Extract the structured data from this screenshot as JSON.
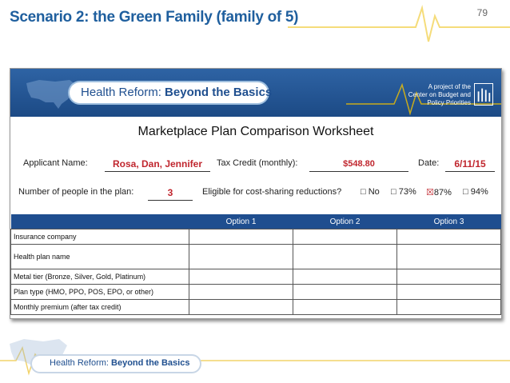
{
  "slide": {
    "title": "Scenario 2: the Green Family (family of 5)",
    "page_number": "79"
  },
  "banner": {
    "brand_light": "Health Reform: ",
    "brand_bold": "Beyond the Basics",
    "cbpp_line1": "A project of the",
    "cbpp_line2": "Center on Budget and",
    "cbpp_line3": "Policy Priorities"
  },
  "worksheet": {
    "title": "Marketplace Plan Comparison Worksheet",
    "applicant_label": "Applicant Name:",
    "applicant_value": "Rosa, Dan, Jennifer",
    "tax_credit_label": "Tax Credit (monthly):",
    "tax_credit_value": "$548.80",
    "date_label": "Date:",
    "date_value": "6/11/15",
    "people_label": "Number of people in the plan:",
    "people_value": "3",
    "eligible_label": "Eligible for cost-sharing reductions?",
    "options": [
      {
        "label": "No",
        "checked": false
      },
      {
        "label": "73%",
        "checked": false
      },
      {
        "label": "87%",
        "checked": true
      },
      {
        "label": "94%",
        "checked": false
      }
    ]
  },
  "table": {
    "headers": [
      "",
      "Option 1",
      "Option 2",
      "Option 3"
    ],
    "rows": [
      {
        "label": "Insurance company",
        "tall": false
      },
      {
        "label": "Health plan name",
        "tall": true
      },
      {
        "label": "Metal tier (Bronze, Silver, Gold, Platinum)",
        "tall": false
      },
      {
        "label": "Plan type (HMO, PPO, POS, EPO, or other)",
        "tall": false
      },
      {
        "label": "Monthly premium  (after tax credit)",
        "tall": false
      }
    ]
  },
  "footer": {
    "brand_light": "Health Reform: ",
    "brand_bold": "Beyond the Basics"
  },
  "colors": {
    "title_blue": "#1f5f9e",
    "banner_blue": "#1f4e8f",
    "value_red": "#c0262e",
    "pulse_yellow": "#f2c200"
  }
}
